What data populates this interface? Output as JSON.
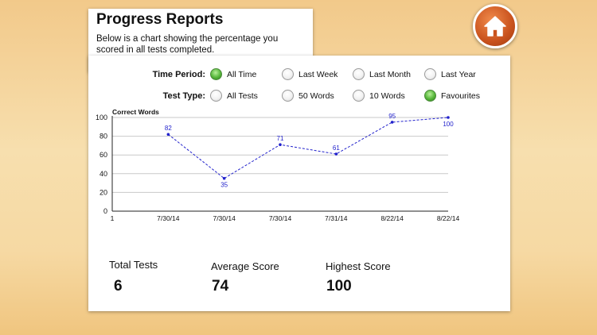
{
  "header": {
    "title": "Progress Reports",
    "subtitle": "Below is a chart showing the percentage you scored in all tests completed."
  },
  "home_button": {
    "icon": "home-icon"
  },
  "filters": {
    "time_period": {
      "label": "Time Period:",
      "options": [
        "All Time",
        "Last Week",
        "Last Month",
        "Last Year"
      ],
      "selected": "All Time"
    },
    "test_type": {
      "label": "Test Type:",
      "options": [
        "All Tests",
        "50 Words",
        "10 Words",
        "Favourites"
      ],
      "selected": "Favourites"
    }
  },
  "chart_data": {
    "type": "line",
    "ylabel": "Correct Words",
    "ylim": [
      0,
      100
    ],
    "yticks": [
      0,
      20,
      40,
      60,
      80,
      100
    ],
    "x_ticks": [
      "1",
      "7/30/14",
      "7/30/14",
      "7/30/14",
      "7/31/14",
      "8/22/14",
      "8/22/14"
    ],
    "categories": [
      "7/30/14",
      "7/30/14",
      "7/30/14",
      "7/31/14",
      "8/22/14",
      "8/22/14"
    ],
    "series": [
      {
        "values": [
          82,
          35,
          71,
          61,
          95,
          100
        ],
        "color": "#2222cc"
      }
    ],
    "grid": true
  },
  "stats": {
    "total_tests": {
      "label": "Total Tests",
      "value": "6"
    },
    "average_score": {
      "label": "Average Score",
      "value": "74"
    },
    "highest_score": {
      "label": "Highest Score",
      "value": "100"
    }
  }
}
